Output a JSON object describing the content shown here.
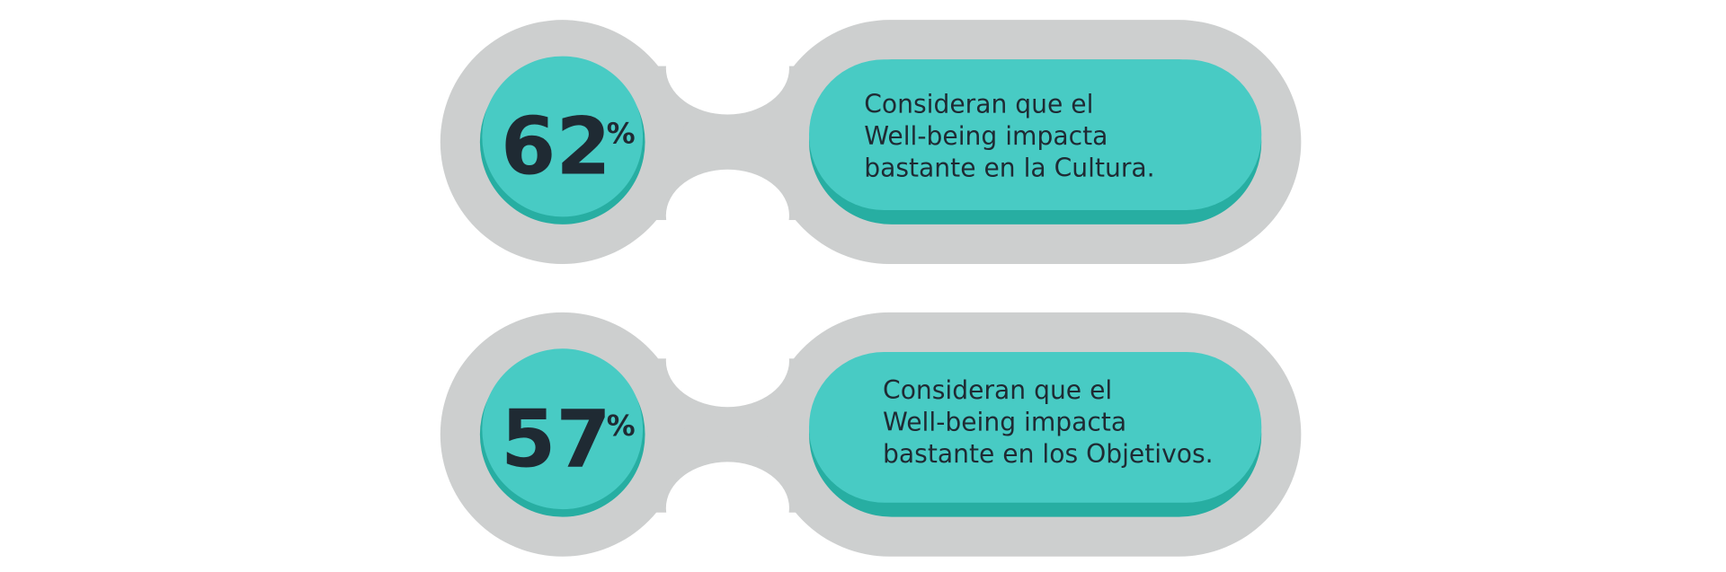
{
  "items": [
    {
      "percent": 62,
      "symbol": "%",
      "lines": [
        "Consideran que el",
        "Well-being impacta",
        "bastante  en la Cultura."
      ]
    },
    {
      "percent": 57,
      "symbol": "%",
      "lines": [
        "Consideran que el",
        "Well-being impacta",
        "bastante en los Objetivos."
      ]
    }
  ]
}
